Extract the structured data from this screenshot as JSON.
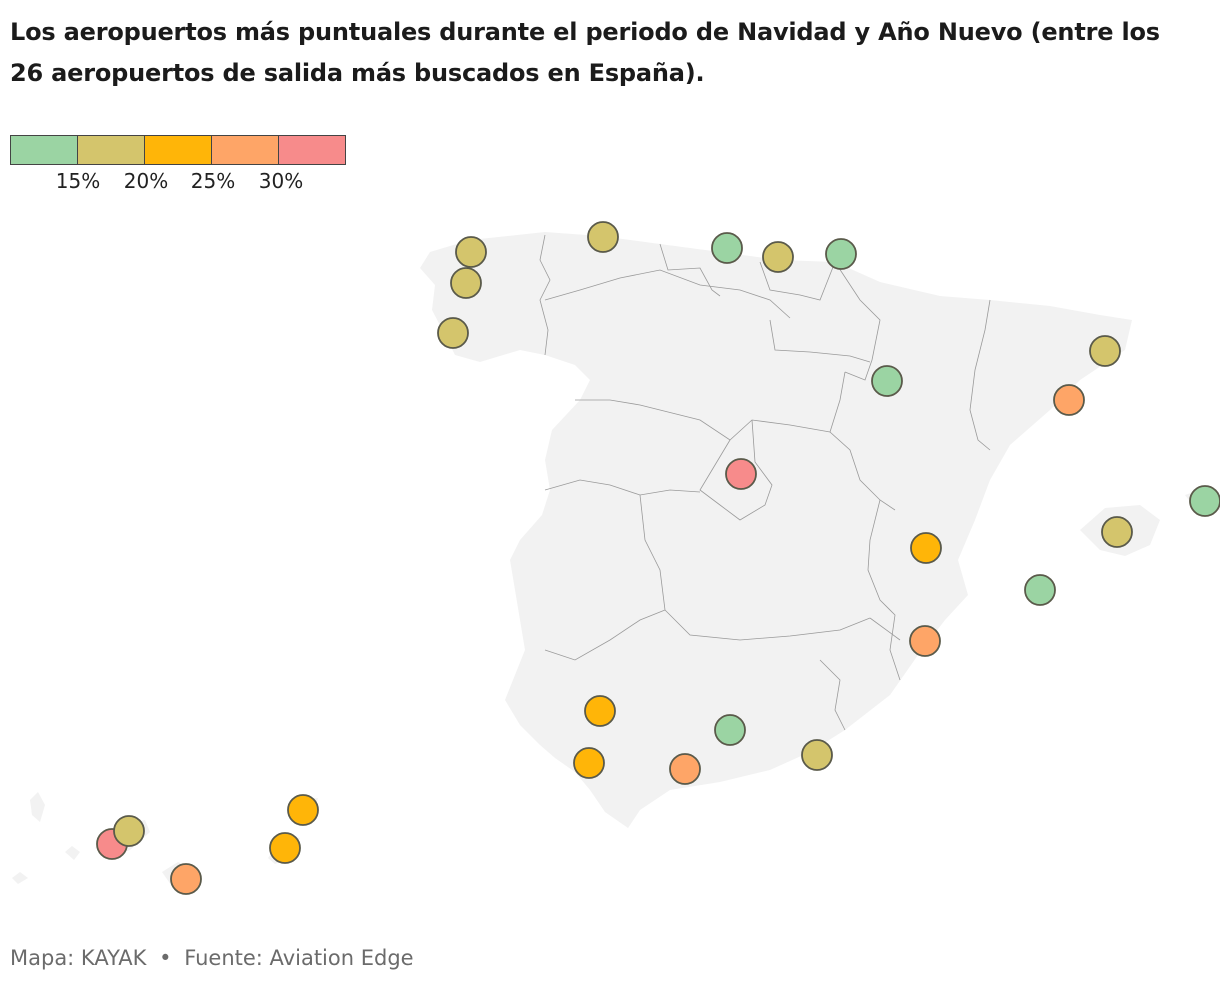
{
  "title": "Los aeropuertos más puntuales durante el periodo de Navidad y Año Nuevo (entre los 26 aeropuertos de salida más buscados en España).",
  "legend": {
    "colors": [
      "#9bd4a3",
      "#d4c56c",
      "#ffb508",
      "#fea567",
      "#f78b8b"
    ],
    "ticks": [
      "15%",
      "20%",
      "25%",
      "30%"
    ]
  },
  "map": {
    "land_color": "#f2f2f2",
    "border_color": "#9a9a9a",
    "marker_stroke": "#5a5a4a"
  },
  "footer": {
    "map_credit": "Mapa: KAYAK",
    "separator": "•",
    "source": "Fuente: Aviation Edge"
  }
}
